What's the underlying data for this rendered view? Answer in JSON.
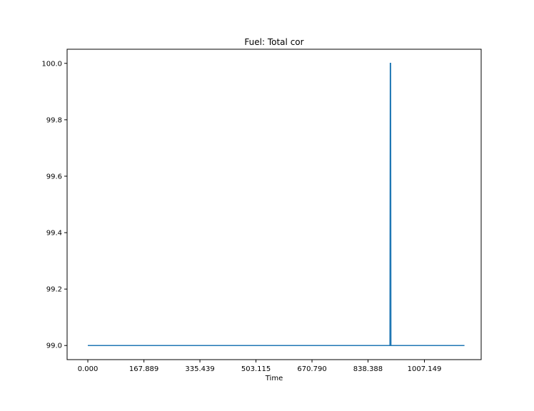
{
  "chart_data": {
    "type": "line",
    "title": "Fuel: Total cor",
    "xlabel": "Time",
    "ylabel": "",
    "xlim": [
      -62,
      1177
    ],
    "ylim": [
      98.95,
      100.05
    ],
    "x_ticks": [
      0,
      167.889,
      335.439,
      503.115,
      670.79,
      838.388,
      1007.149
    ],
    "x_tick_labels": [
      "0.000",
      "167.889",
      "335.439",
      "503.115",
      "670.790",
      "838.388",
      "1007.149"
    ],
    "y_ticks": [
      99.0,
      99.2,
      99.4,
      99.6,
      99.8,
      100.0
    ],
    "y_tick_labels": [
      "99.0",
      "99.2",
      "99.4",
      "99.6",
      "99.8",
      "100.0"
    ],
    "grid": false,
    "series_color": "#1f77b4",
    "series": [
      {
        "x": [
          0,
          904,
          905,
          906,
          907,
          1127
        ],
        "values": [
          99.0,
          99.0,
          100.0,
          100.0,
          99.0,
          99.0
        ]
      }
    ]
  }
}
